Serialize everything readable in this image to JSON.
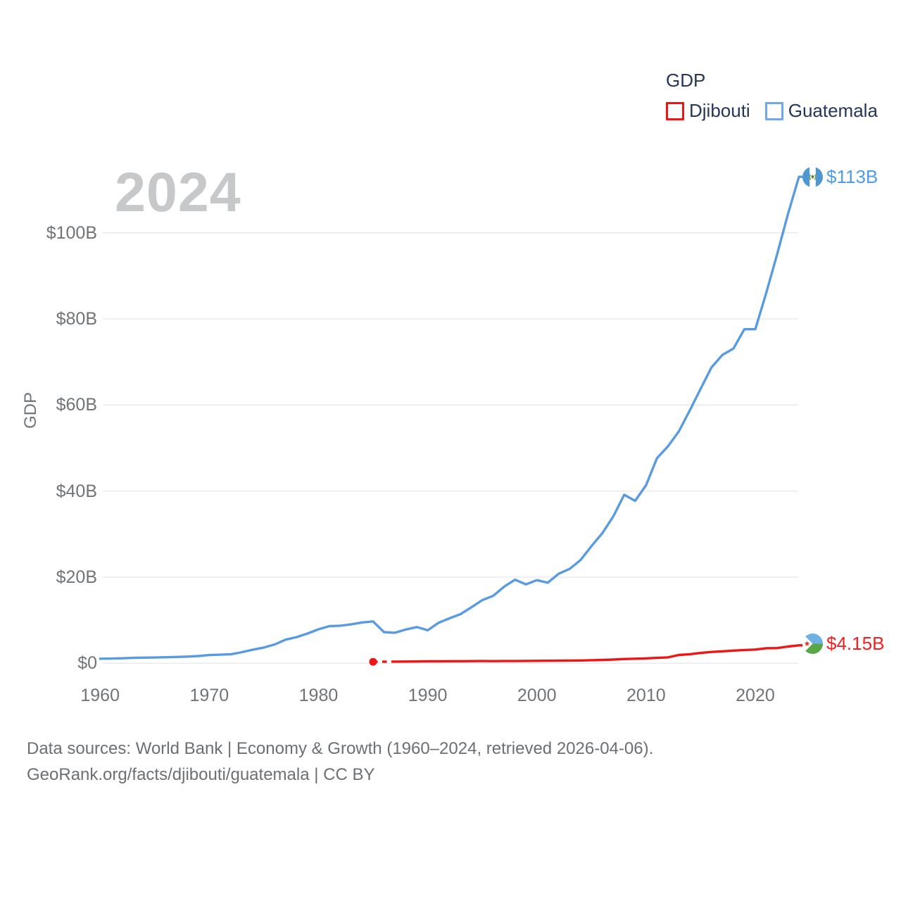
{
  "watermark": "2024",
  "legend": {
    "title": "GDP",
    "items": [
      {
        "label": "Djibouti",
        "swatch_color": "#ee1515"
      },
      {
        "label": "Guatemala",
        "swatch_color": "#6fa8e8"
      }
    ]
  },
  "y_axis": {
    "title": "GDP",
    "ticks": [
      "$0",
      "$20B",
      "$40B",
      "$60B",
      "$80B",
      "$100B"
    ],
    "tick_values": [
      0,
      20,
      40,
      60,
      80,
      100
    ]
  },
  "x_axis": {
    "ticks": [
      "1960",
      "1970",
      "1980",
      "1990",
      "2000",
      "2010",
      "2020"
    ],
    "tick_values": [
      1960,
      1970,
      1980,
      1990,
      2000,
      2010,
      2020
    ]
  },
  "end_labels": [
    {
      "series": "Guatemala",
      "text": "$113B",
      "color": "#4f9ce8"
    },
    {
      "series": "Djibouti",
      "text": "$4.15B",
      "color": "#f22121"
    }
  ],
  "footer": {
    "line1": "Data sources: World Bank | Economy & Growth (1960–2024, retrieved 2026-04-06).",
    "line2": "GeoRank.org/facts/djibouti/guatemala | CC BY"
  },
  "chart_data": {
    "type": "line",
    "title": "GDP",
    "ylabel": "GDP",
    "xlabel": "",
    "units": "current US$ billions",
    "xlim": [
      1960,
      2024
    ],
    "ylim": [
      0,
      113
    ],
    "grid": "horizontal",
    "legend_position": "top-right",
    "x": [
      1960,
      1961,
      1962,
      1963,
      1964,
      1965,
      1966,
      1967,
      1968,
      1969,
      1970,
      1971,
      1972,
      1973,
      1974,
      1975,
      1976,
      1977,
      1978,
      1979,
      1980,
      1981,
      1982,
      1983,
      1984,
      1985,
      1986,
      1987,
      1988,
      1989,
      1990,
      1991,
      1992,
      1993,
      1994,
      1995,
      1996,
      1997,
      1998,
      1999,
      2000,
      2001,
      2002,
      2003,
      2004,
      2005,
      2006,
      2007,
      2008,
      2009,
      2010,
      2011,
      2012,
      2013,
      2014,
      2015,
      2016,
      2017,
      2018,
      2019,
      2020,
      2021,
      2022,
      2023,
      2024
    ],
    "series": [
      {
        "name": "Djibouti",
        "color": "#ee1515",
        "end_label": "$4.15B",
        "values": [
          null,
          null,
          null,
          null,
          null,
          null,
          null,
          null,
          null,
          null,
          null,
          null,
          null,
          null,
          null,
          null,
          null,
          null,
          null,
          null,
          null,
          null,
          null,
          null,
          null,
          0.33,
          null,
          0.37,
          0.39,
          0.41,
          0.45,
          0.46,
          0.48,
          0.47,
          0.49,
          0.5,
          0.49,
          0.5,
          0.51,
          0.54,
          0.55,
          0.57,
          0.59,
          0.62,
          0.64,
          0.71,
          0.77,
          0.85,
          0.98,
          1.05,
          1.13,
          1.24,
          1.35,
          1.91,
          2.1,
          2.39,
          2.61,
          2.77,
          2.92,
          3.07,
          3.18,
          3.48,
          3.52,
          3.87,
          4.15
        ]
      },
      {
        "name": "Guatemala",
        "color": "#599be1",
        "end_label": "$113B",
        "values": [
          1.04,
          1.08,
          1.14,
          1.24,
          1.3,
          1.33,
          1.39,
          1.45,
          1.53,
          1.66,
          1.9,
          1.98,
          2.1,
          2.57,
          3.16,
          3.65,
          4.37,
          5.48,
          6.07,
          6.9,
          7.88,
          8.61,
          8.72,
          9.05,
          9.47,
          9.72,
          7.23,
          7.08,
          7.84,
          8.41,
          7.65,
          9.41,
          10.44,
          11.4,
          12.98,
          14.66,
          15.67,
          17.79,
          19.39,
          18.32,
          19.29,
          18.7,
          20.78,
          21.92,
          23.97,
          27.21,
          30.23,
          34.11,
          39.14,
          37.73,
          41.34,
          47.65,
          50.39,
          53.85,
          58.72,
          63.77,
          68.76,
          71.64,
          73.12,
          77.6,
          77.6,
          86.0,
          95.0,
          104.4,
          113.0
        ]
      }
    ]
  }
}
